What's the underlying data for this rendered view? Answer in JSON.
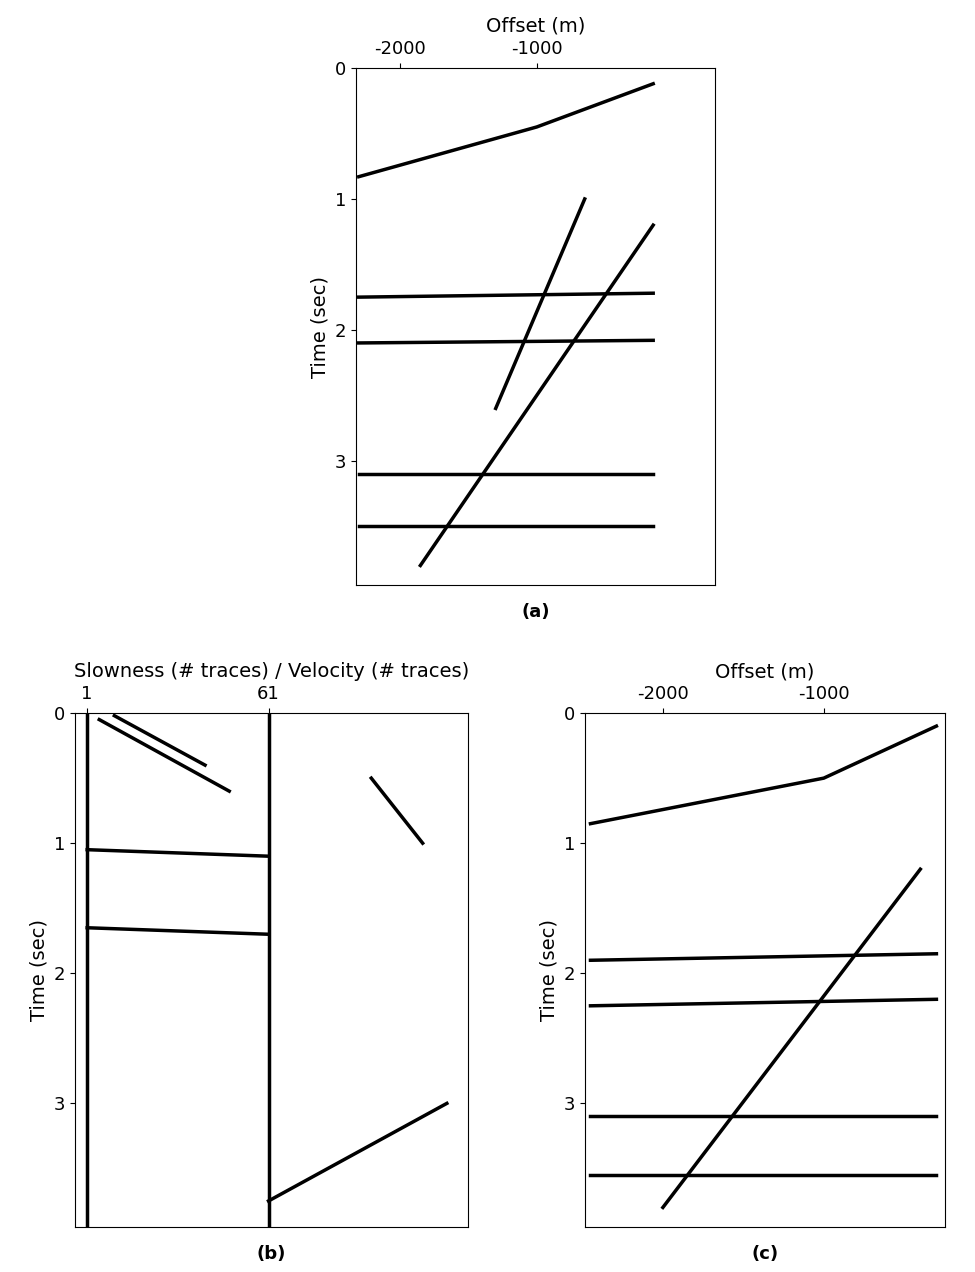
{
  "chart_data": [
    {
      "type": "line",
      "label": "(a)",
      "xlabel": "Offset (m)",
      "ylabel": "Time (sec)",
      "xlim": [
        -2321,
        299
      ],
      "ylim": [
        3.95,
        0
      ],
      "xticks": [
        -2000,
        -1000
      ],
      "yticks": [
        0,
        1,
        2,
        3
      ],
      "color": "#000000",
      "series": [
        {
          "x": [
            -2300,
            -1000,
            -150
          ],
          "values": [
            0.83,
            0.45,
            0.12
          ]
        },
        {
          "x": [
            -150,
            -1850
          ],
          "values": [
            1.2,
            3.8
          ]
        },
        {
          "x": [
            -650,
            -1300
          ],
          "values": [
            1.0,
            2.6
          ]
        },
        {
          "x": [
            -2300,
            -150
          ],
          "values": [
            1.75,
            1.72
          ]
        },
        {
          "x": [
            -2300,
            -150
          ],
          "values": [
            2.1,
            2.08
          ]
        },
        {
          "x": [
            -2300,
            -150
          ],
          "values": [
            3.1,
            3.1
          ]
        },
        {
          "x": [
            -2300,
            -150
          ],
          "values": [
            3.5,
            3.5
          ]
        }
      ]
    },
    {
      "type": "line",
      "label": "(b)",
      "xlabel": "Slowness (# traces) / Velocity (# traces)",
      "ylabel": "Time (sec)",
      "xlim": [
        -3,
        127
      ],
      "ylim": [
        3.95,
        0
      ],
      "xticks": [
        1,
        61
      ],
      "yticks": [
        0,
        1,
        2,
        3
      ],
      "color": "#000000",
      "series": [
        {
          "x": [
            1,
            1
          ],
          "values": [
            0,
            3.95
          ]
        },
        {
          "x": [
            61,
            61
          ],
          "values": [
            0,
            3.95
          ]
        },
        {
          "x": [
            5,
            48
          ],
          "values": [
            0.05,
            0.6
          ]
        },
        {
          "x": [
            10,
            40
          ],
          "values": [
            0.02,
            0.4
          ]
        },
        {
          "x": [
            1,
            61
          ],
          "values": [
            1.65,
            1.7
          ]
        },
        {
          "x": [
            1,
            61
          ],
          "values": [
            1.05,
            1.1
          ]
        },
        {
          "x": [
            95,
            112
          ],
          "values": [
            0.5,
            1.0
          ]
        },
        {
          "x": [
            61,
            120
          ],
          "values": [
            3.75,
            3.0
          ]
        }
      ]
    },
    {
      "type": "line",
      "label": "(c)",
      "xlabel": "Offset (m)",
      "ylabel": "Time (sec)",
      "xlim": [
        -2484,
        -248
      ],
      "ylim": [
        3.95,
        0
      ],
      "xticks": [
        -2000,
        -1000
      ],
      "yticks": [
        0,
        1,
        2,
        3
      ],
      "color": "#000000",
      "series": [
        {
          "x": [
            -2450,
            -1000,
            -300
          ],
          "values": [
            0.85,
            0.5,
            0.1
          ]
        },
        {
          "x": [
            -400,
            -2000
          ],
          "values": [
            1.2,
            3.8
          ]
        },
        {
          "x": [
            -2450,
            -300
          ],
          "values": [
            1.9,
            1.85
          ]
        },
        {
          "x": [
            -2450,
            -300
          ],
          "values": [
            2.25,
            2.2
          ]
        },
        {
          "x": [
            -2450,
            -300
          ],
          "values": [
            3.1,
            3.1
          ]
        },
        {
          "x": [
            -2450,
            -300
          ],
          "values": [
            3.55,
            3.55
          ]
        }
      ]
    }
  ]
}
